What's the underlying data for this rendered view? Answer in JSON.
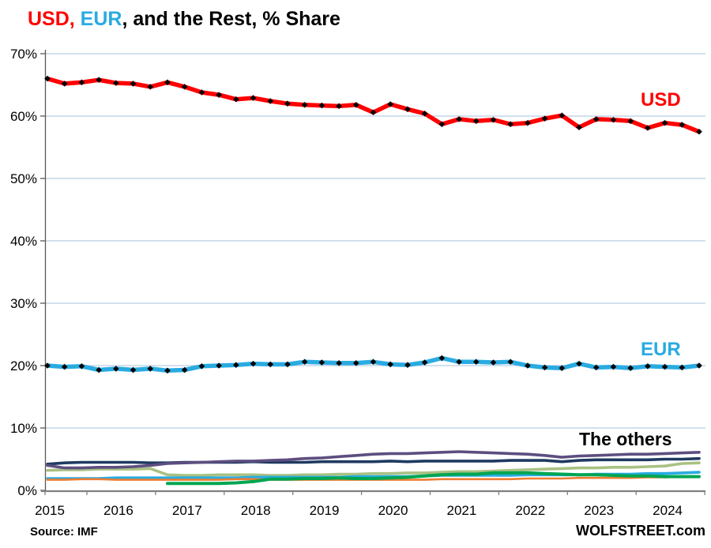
{
  "title": {
    "usd": "USD,",
    "eur": " EUR",
    "rest": ", and the Rest, % Share"
  },
  "footer": {
    "source": "Source: IMF",
    "brand": "WOLFSTREET.com"
  },
  "colors": {
    "usd": "#FF0000",
    "eur": "#29ABE2",
    "gridline": "#B9CDE5",
    "y_axis": "#595959",
    "x_axis": "#808080",
    "marker": "#000000"
  },
  "chart_data": {
    "type": "line",
    "title": "USD, EUR, and the Rest, % Share",
    "x_unit": "quarters",
    "x_start": 2015.0,
    "x_step": 0.25,
    "ylim": [
      0,
      70
    ],
    "grid": "horizontal",
    "legend_position": "inline-annotations",
    "x_tick_labels": [
      "2015",
      "2016",
      "2017",
      "2018",
      "2019",
      "2020",
      "2021",
      "2022",
      "2023",
      "2024"
    ],
    "y_tick_labels": [
      "0%",
      "10%",
      "20%",
      "30%",
      "40%",
      "50%",
      "60%",
      "70%"
    ],
    "annotations": {
      "usd": "USD",
      "eur": "EUR",
      "others": "The others"
    },
    "series": [
      {
        "name": "others-sage",
        "color": "#A9C183",
        "width": 3.6,
        "markers": false,
        "values": [
          3.2,
          3.3,
          3.3,
          3.4,
          3.4,
          3.4,
          3.5,
          2.5,
          2.4,
          2.4,
          2.5,
          2.5,
          2.5,
          2.4,
          2.4,
          2.5,
          2.5,
          2.6,
          2.6,
          2.7,
          2.7,
          2.8,
          2.8,
          2.9,
          3.0,
          3.0,
          3.1,
          3.2,
          3.3,
          3.4,
          3.5,
          3.6,
          3.6,
          3.7,
          3.7,
          3.8,
          3.9,
          4.3,
          4.4
        ]
      },
      {
        "name": "others-cyan",
        "color": "#29ABE2",
        "width": 3.6,
        "markers": false,
        "values": [
          1.9,
          1.9,
          1.9,
          1.9,
          2.0,
          2.0,
          2.0,
          2.0,
          2.0,
          2.0,
          2.0,
          2.0,
          2.1,
          2.1,
          2.1,
          2.1,
          2.1,
          2.1,
          2.2,
          2.2,
          2.2,
          2.2,
          2.3,
          2.4,
          2.4,
          2.4,
          2.4,
          2.4,
          2.5,
          2.5,
          2.5,
          2.5,
          2.6,
          2.6,
          2.6,
          2.7,
          2.7,
          2.8,
          2.9
        ]
      },
      {
        "name": "others-orange",
        "color": "#ED7D31",
        "width": 2.6,
        "markers": false,
        "values": [
          1.7,
          1.7,
          1.8,
          1.8,
          1.7,
          1.7,
          1.7,
          1.7,
          1.7,
          1.7,
          1.7,
          1.8,
          1.8,
          1.7,
          1.7,
          1.7,
          1.7,
          1.7,
          1.7,
          1.7,
          1.7,
          1.7,
          1.7,
          1.8,
          1.8,
          1.8,
          1.8,
          1.8,
          1.9,
          1.9,
          1.9,
          2.0,
          2.0,
          2.0,
          2.0,
          2.1,
          2.1,
          2.2,
          2.2
        ]
      },
      {
        "name": "others-green",
        "color": "#00A651",
        "width": 4.0,
        "markers": false,
        "values": [
          null,
          null,
          null,
          null,
          null,
          null,
          null,
          1.1,
          1.1,
          1.1,
          1.1,
          1.2,
          1.4,
          1.8,
          1.8,
          1.9,
          1.9,
          2.0,
          1.9,
          1.9,
          2.0,
          2.1,
          2.3,
          2.5,
          2.6,
          2.6,
          2.8,
          2.8,
          2.8,
          2.7,
          2.6,
          2.5,
          2.5,
          2.4,
          2.3,
          2.3,
          2.2,
          2.2,
          2.2
        ]
      },
      {
        "name": "others-navy",
        "color": "#1F3A60",
        "width": 3.6,
        "markers": false,
        "values": [
          4.2,
          4.4,
          4.5,
          4.5,
          4.5,
          4.5,
          4.4,
          4.4,
          4.5,
          4.5,
          4.5,
          4.5,
          4.6,
          4.5,
          4.5,
          4.5,
          4.6,
          4.6,
          4.6,
          4.6,
          4.7,
          4.6,
          4.7,
          4.7,
          4.7,
          4.7,
          4.7,
          4.8,
          4.8,
          4.8,
          4.6,
          4.8,
          4.9,
          4.9,
          4.9,
          4.9,
          5.0,
          5.0,
          5.1
        ]
      },
      {
        "name": "others-purple",
        "color": "#5D4E80",
        "width": 3.6,
        "markers": false,
        "values": [
          4.0,
          3.6,
          3.6,
          3.7,
          3.7,
          3.8,
          4.0,
          4.3,
          4.4,
          4.5,
          4.6,
          4.7,
          4.7,
          4.8,
          4.9,
          5.1,
          5.2,
          5.4,
          5.6,
          5.8,
          5.9,
          5.9,
          6.0,
          6.1,
          6.2,
          6.1,
          6.0,
          5.9,
          5.8,
          5.6,
          5.3,
          5.5,
          5.6,
          5.7,
          5.8,
          5.8,
          5.9,
          6.0,
          6.1
        ]
      },
      {
        "name": "EUR",
        "color": "#29ABE2",
        "width": 5.5,
        "markers": true,
        "values": [
          20.0,
          19.8,
          19.9,
          19.3,
          19.5,
          19.3,
          19.5,
          19.2,
          19.3,
          19.9,
          20.0,
          20.1,
          20.3,
          20.2,
          20.2,
          20.6,
          20.5,
          20.4,
          20.4,
          20.6,
          20.2,
          20.1,
          20.5,
          21.2,
          20.6,
          20.6,
          20.5,
          20.6,
          20.0,
          19.7,
          19.6,
          20.3,
          19.7,
          19.8,
          19.6,
          19.9,
          19.8,
          19.7,
          20.0
        ]
      },
      {
        "name": "USD",
        "color": "#FF0000",
        "width": 5.5,
        "markers": true,
        "values": [
          66.0,
          65.2,
          65.4,
          65.8,
          65.3,
          65.2,
          64.7,
          65.4,
          64.7,
          63.8,
          63.4,
          62.7,
          62.9,
          62.4,
          62.0,
          61.8,
          61.7,
          61.6,
          61.8,
          60.6,
          61.9,
          61.1,
          60.4,
          58.7,
          59.5,
          59.2,
          59.4,
          58.7,
          58.9,
          59.6,
          60.1,
          58.2,
          59.5,
          59.4,
          59.2,
          58.1,
          58.9,
          58.6,
          57.5
        ]
      }
    ]
  }
}
